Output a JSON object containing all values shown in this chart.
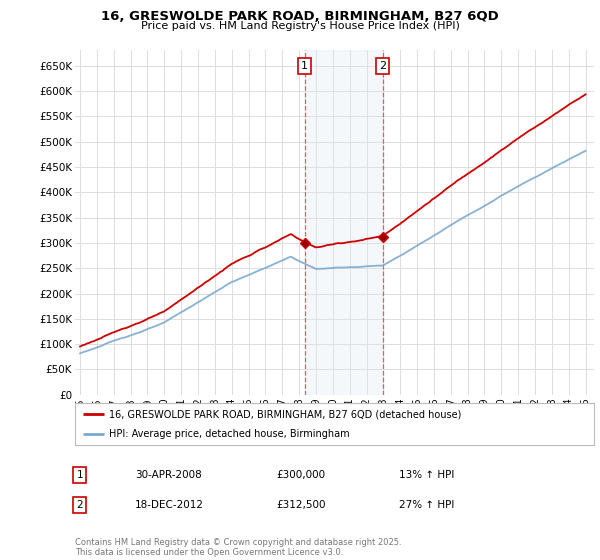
{
  "title_line1": "16, GRESWOLDE PARK ROAD, BIRMINGHAM, B27 6QD",
  "title_line2": "Price paid vs. HM Land Registry's House Price Index (HPI)",
  "ylabel_ticks": [
    "£0",
    "£50K",
    "£100K",
    "£150K",
    "£200K",
    "£250K",
    "£300K",
    "£350K",
    "£400K",
    "£450K",
    "£500K",
    "£550K",
    "£600K",
    "£650K"
  ],
  "ytick_values": [
    0,
    50000,
    100000,
    150000,
    200000,
    250000,
    300000,
    350000,
    400000,
    450000,
    500000,
    550000,
    600000,
    650000
  ],
  "ylim": [
    0,
    680000
  ],
  "xlim_start": 1994.7,
  "xlim_end": 2025.5,
  "background_color": "#ffffff",
  "plot_bg_color": "#ffffff",
  "grid_color": "#dddddd",
  "red_line_color": "#cc0000",
  "blue_line_color": "#7aaad0",
  "blue_fill_color": "#dce8f5",
  "sale1_x": 2008.33,
  "sale1_y": 300000,
  "sale1_label": "1",
  "sale1_date": "30-APR-2008",
  "sale1_price": "£300,000",
  "sale1_hpi": "13% ↑ HPI",
  "sale2_x": 2012.96,
  "sale2_y": 312500,
  "sale2_label": "2",
  "sale2_date": "18-DEC-2012",
  "sale2_price": "£312,500",
  "sale2_hpi": "27% ↑ HPI",
  "legend_label_red": "16, GRESWOLDE PARK ROAD, BIRMINGHAM, B27 6QD (detached house)",
  "legend_label_blue": "HPI: Average price, detached house, Birmingham",
  "footer_text": "Contains HM Land Registry data © Crown copyright and database right 2025.\nThis data is licensed under the Open Government Licence v3.0.",
  "xtick_years": [
    1995,
    1996,
    1997,
    1998,
    1999,
    2000,
    2001,
    2002,
    2003,
    2004,
    2005,
    2006,
    2007,
    2008,
    2009,
    2010,
    2011,
    2012,
    2013,
    2014,
    2015,
    2016,
    2017,
    2018,
    2019,
    2020,
    2021,
    2022,
    2023,
    2024,
    2025
  ]
}
